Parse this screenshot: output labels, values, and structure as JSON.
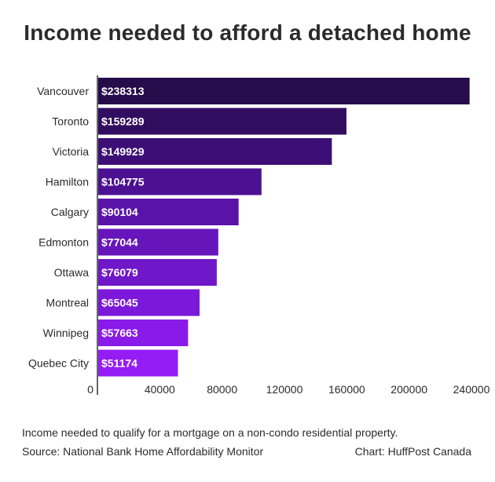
{
  "chart_data": {
    "type": "bar",
    "orientation": "horizontal",
    "title": "Income needed to afford a detached home",
    "categories": [
      "Vancouver",
      "Toronto",
      "Victoria",
      "Hamilton",
      "Calgary",
      "Edmonton",
      "Ottawa",
      "Montreal",
      "Winnipeg",
      "Quebec City"
    ],
    "values": [
      238313,
      159289,
      149929,
      104775,
      90104,
      77044,
      76079,
      65045,
      57663,
      51174
    ],
    "value_labels": [
      "$238313",
      "$159289",
      "$149929",
      "$104775",
      "$90104",
      "$77044",
      "$76079",
      "$65045",
      "$57663",
      "$51174"
    ],
    "xlim": [
      0,
      240000
    ],
    "xticks": [
      0,
      40000,
      80000,
      120000,
      160000,
      200000,
      240000
    ],
    "xtick_labels": [
      "0",
      "40000",
      "80000",
      "120000",
      "160000",
      "200000",
      "240000"
    ],
    "xlabel": "",
    "ylabel": "",
    "grid": false,
    "colors": [
      "#260c4a",
      "#310d5f",
      "#3d0f76",
      "#4c1192",
      "#5a13a8",
      "#6615bb",
      "#6f17c9",
      "#7b18da",
      "#8a1ae8",
      "#951cf4"
    ]
  },
  "footer": {
    "note": "Income needed to qualify for a mortgage on a non-condo residential property.",
    "source": "Source: National Bank Home Affordability Monitor",
    "credit": "Chart: HuffPost Canada"
  }
}
